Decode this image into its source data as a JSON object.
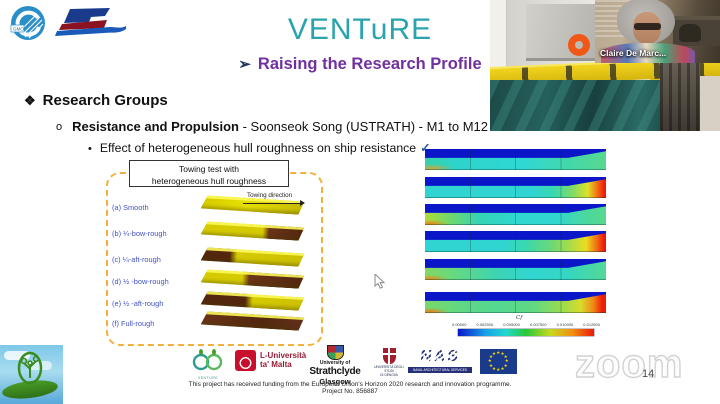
{
  "slide": {
    "title": "VENTuRE",
    "subtitle_bullet": "➢",
    "subtitle": "Raising the Research Profile",
    "section": {
      "bullet": "❖",
      "title": "Research Groups"
    },
    "item": {
      "bullet": "o",
      "bold": "Resistance and Propulsion",
      "rest": " - Soonseok Song (USTRATH) - M1 to M12"
    },
    "subitem": {
      "bullet": "•",
      "text": "Effect of heterogeneous hull roughness on ship resistance",
      "check": "✓"
    }
  },
  "figure_left": {
    "box_title_line1": "Towing test with",
    "box_title_line2": "heterogeneous hull roughness",
    "direction_label": "Towing direction",
    "rows": [
      {
        "label": "(a) Smooth",
        "roughness": "smooth"
      },
      {
        "label": "(b) ¼-bow-rough",
        "roughness": "quarter bow rough"
      },
      {
        "label": "(c) ¼-aft-rough",
        "roughness": "quarter aft rough"
      },
      {
        "label": "(d) ½ -bow-rough",
        "roughness": "half bow rough"
      },
      {
        "label": "(e) ½ -aft-rough",
        "roughness": "half aft rough"
      },
      {
        "label": "(f) Full-rough",
        "roughness": "full rough"
      }
    ]
  },
  "figure_right": {
    "description": "CFD skin-friction contour strips for the six hull roughness configurations",
    "colorbar": {
      "label": "Cf",
      "ticks": [
        "0.00000",
        "0.002500",
        "0.005000",
        "0.007500",
        "0.010000",
        "0.012500"
      ]
    }
  },
  "video": {
    "name_label": "Claire De Marc..."
  },
  "logos": {
    "gmo": "GMO",
    "venture_small": "VENTURE",
    "malta_line1": "L-Università",
    "malta_line2": "ta' Malta",
    "strath_line1": "University of",
    "strath_line2": "Strathclyde",
    "strath_line3": "Glasgow",
    "genova_line1": "UNIVERSITÀ DEGLI STUDI",
    "genova_line2": "DI GENOVA",
    "nas": "NAS",
    "nas_sub": "NAVAL ARCHITECTURAL SERVICES",
    "eu_star_glyph": "★"
  },
  "footer": {
    "funding": "This project has received funding from the European Union's Horizon 2020 research and innovation programme.  Project No. 856887",
    "page_number": "14",
    "watermark": "zoom"
  },
  "colors": {
    "title_teal": "#29a3ae",
    "subtitle_purple": "#7030a0",
    "figure_label_blue": "#4353c4",
    "dashed_border_orange": "#f3b03c",
    "hull_yellow": "#d6cb00",
    "hull_brown": "#6b3418",
    "cfd_deep_blue": "#0a16c8",
    "cfd_red": "#ee1808"
  }
}
